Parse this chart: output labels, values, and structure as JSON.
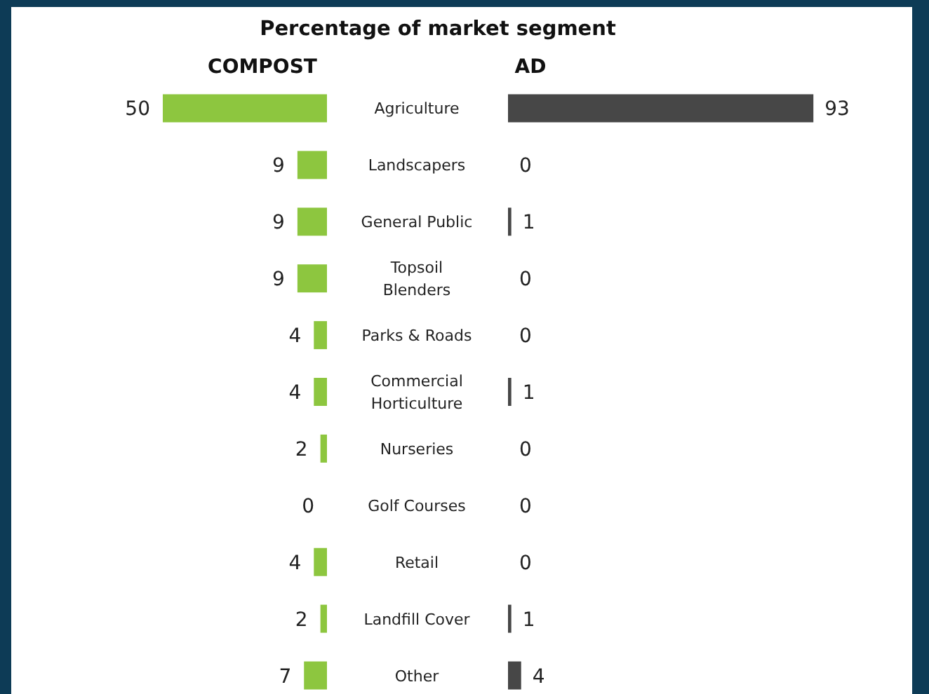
{
  "chart_data": [
    {
      "type": "bar",
      "orientation": "horizontal",
      "title": "Percentage of market segment",
      "subtitle": "COMPOST",
      "categories": [
        "Agriculture",
        "Landscapers",
        "General Public",
        "Topsoil Blenders",
        "Parks & Roads",
        "Commercial Horticulture",
        "Nurseries",
        "Golf Courses",
        "Retail",
        "Landfill Cover",
        "Other"
      ],
      "series": [
        {
          "color": "#8dc63f",
          "values": [
            50,
            9,
            9,
            9,
            4,
            4,
            2,
            0,
            4,
            2,
            7
          ]
        }
      ],
      "data_labels": true
    },
    {
      "type": "bar",
      "orientation": "horizontal",
      "title": "AD",
      "categories": [
        "Agriculture",
        "Landscapers",
        "General Public",
        "Topsoil Blenders",
        "Parks & Roads",
        "Commercial Horticulture",
        "Nurseries",
        "Golf Courses",
        "Retail",
        "Landfill Cover",
        "Other"
      ],
      "series": [
        {
          "color": "#474747",
          "values": [
            93,
            0,
            1,
            0,
            0,
            1,
            0,
            0,
            0,
            1,
            4
          ]
        }
      ],
      "data_labels": true,
      "tick_labels": false
    }
  ]
}
